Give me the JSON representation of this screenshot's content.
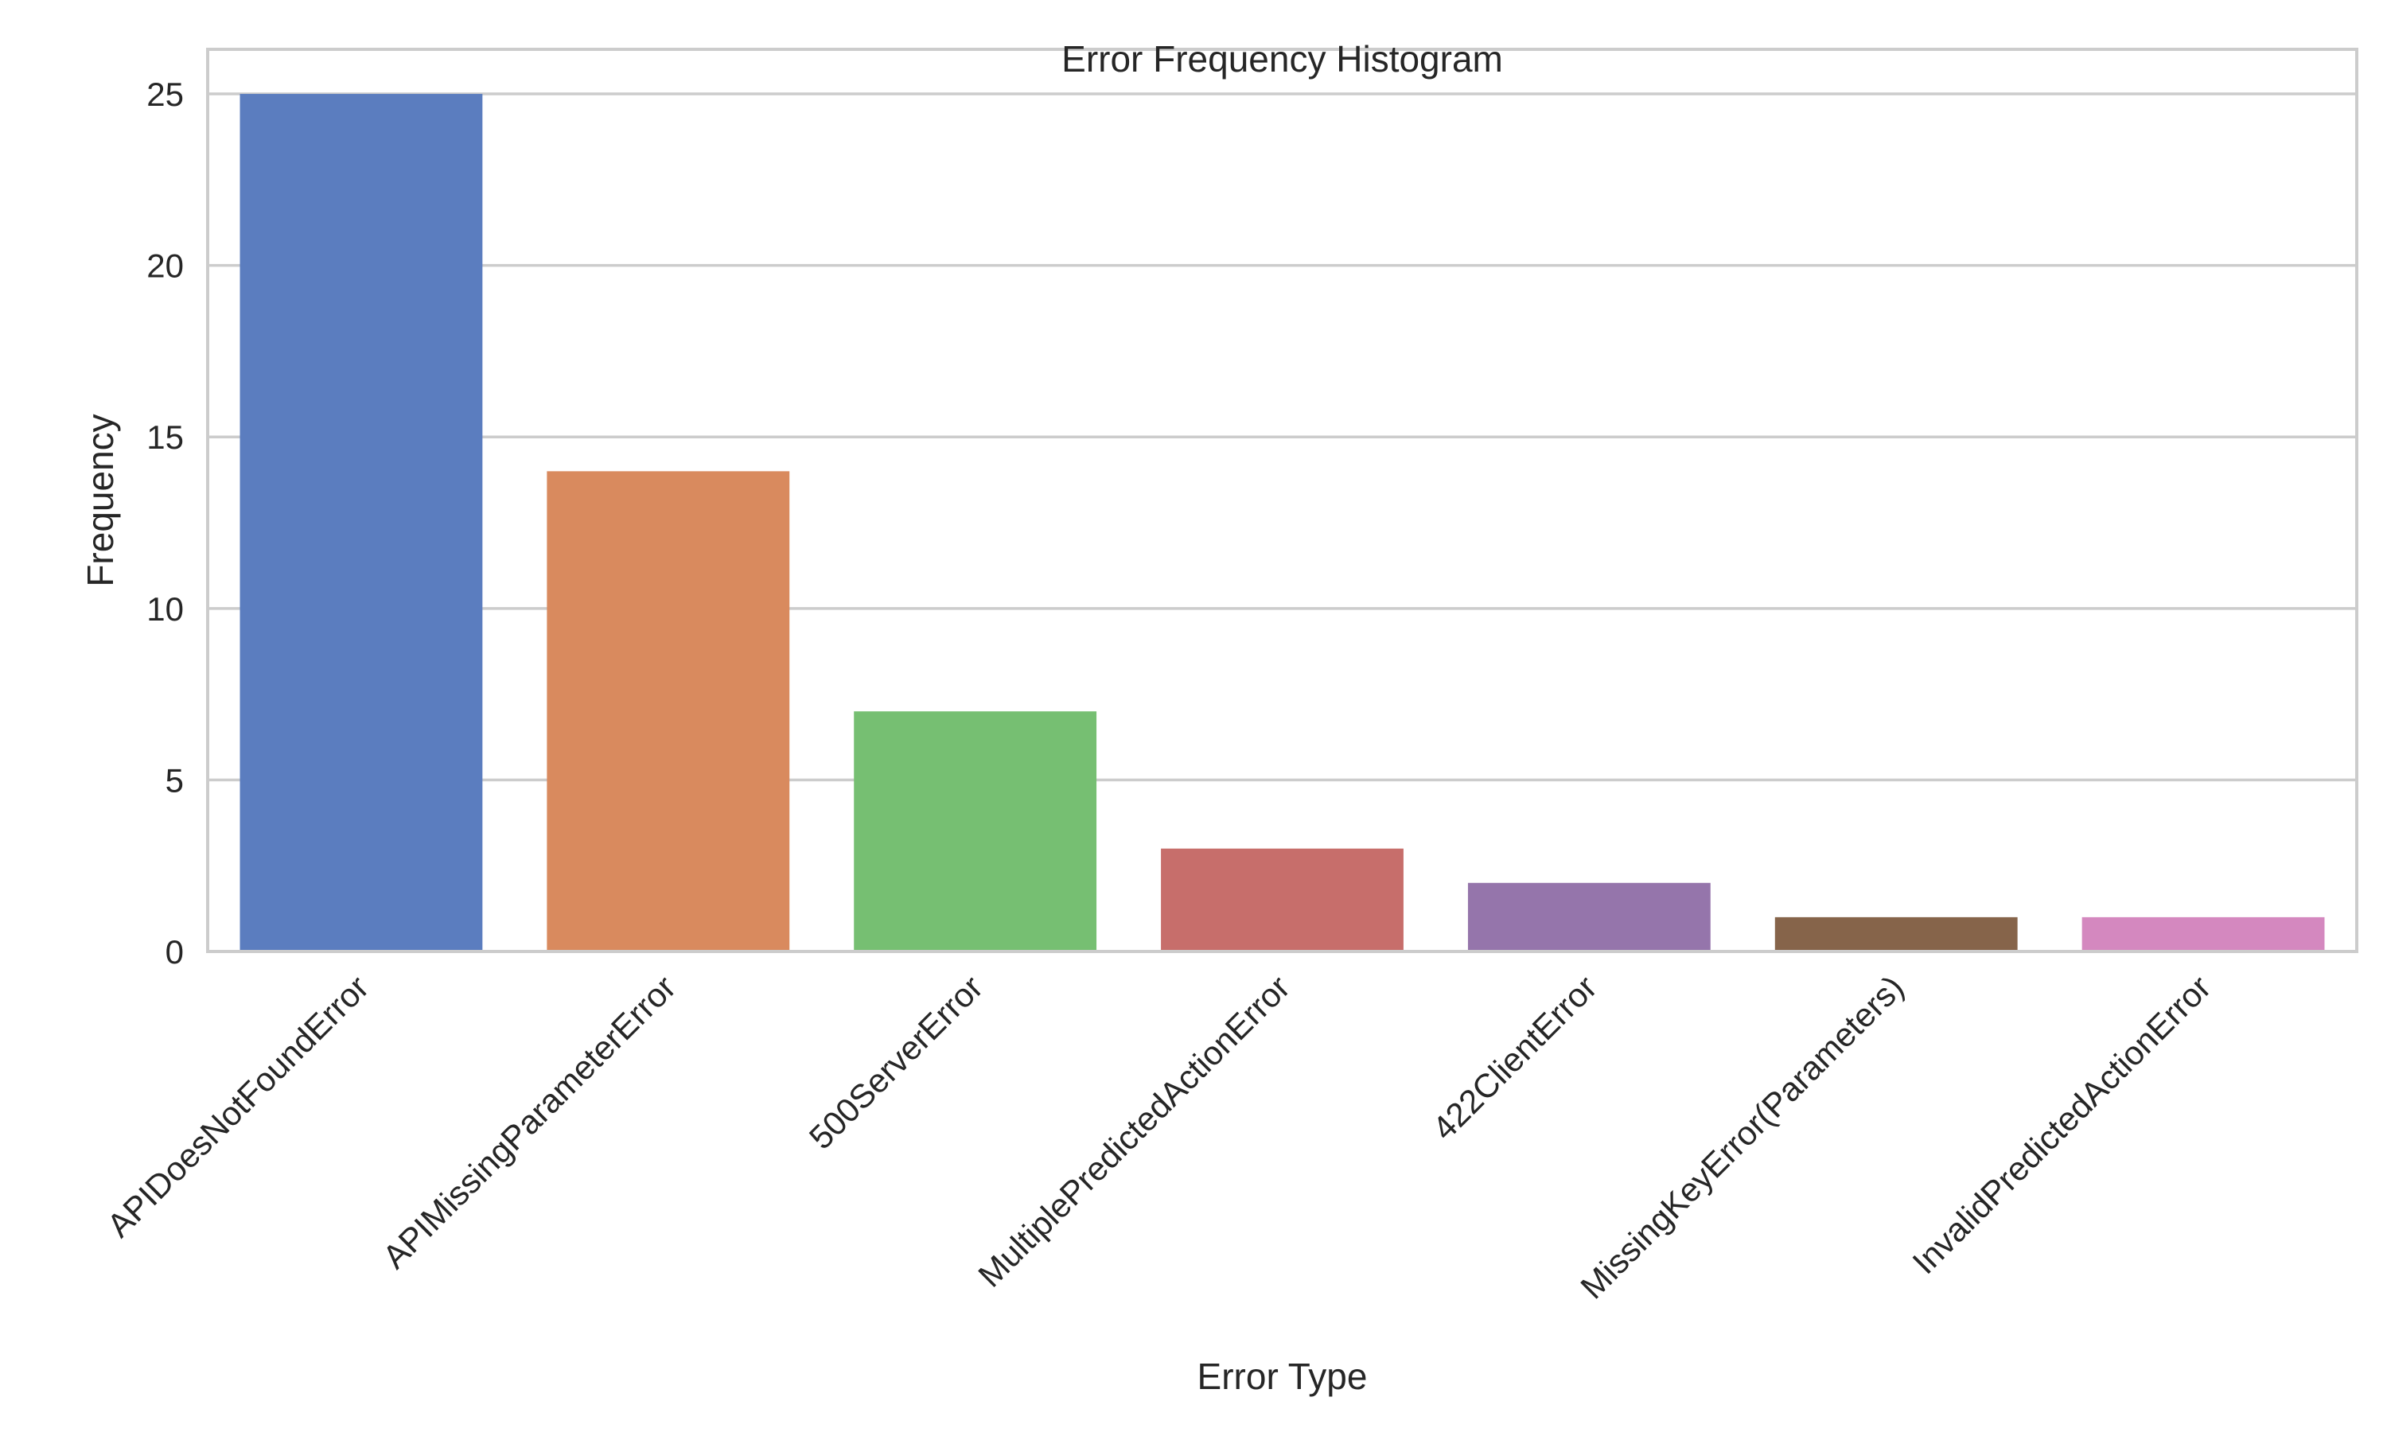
{
  "chart_data": {
    "type": "bar",
    "title": "Error Frequency Histogram",
    "xlabel": "Error Type",
    "ylabel": "Frequency",
    "categories": [
      "APIDoesNotFoundError",
      "APIMissingParameterError",
      "500ServerError",
      "MultiplePredictedActionError",
      "422ClientError",
      "MissingKeyError(Parameters)",
      "InvalidPredictedActionError"
    ],
    "values": [
      25,
      14,
      7,
      3,
      2,
      1,
      1
    ],
    "colors": [
      "#5b7dbf",
      "#d98a5e",
      "#76bf72",
      "#c76e6b",
      "#9575ab",
      "#86644a",
      "#d488bf"
    ],
    "ylim": [
      0,
      26.3
    ],
    "yticks": [
      0,
      5,
      10,
      15,
      20,
      25
    ],
    "grid": true,
    "legend": "none"
  }
}
